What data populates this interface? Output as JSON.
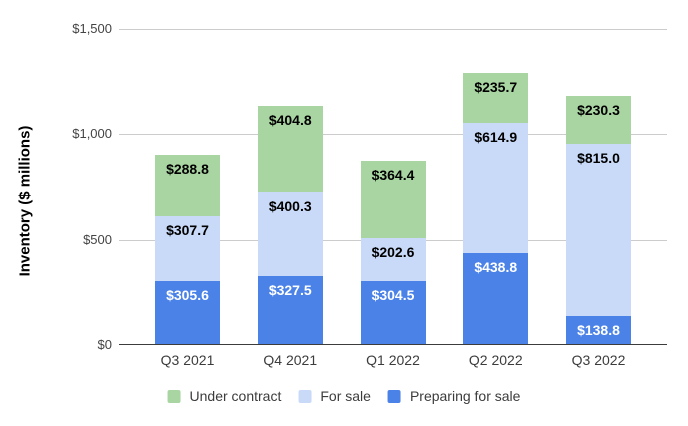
{
  "chart_data": {
    "type": "bar",
    "stacked": true,
    "title": "",
    "xlabel": "",
    "ylabel": "Inventory ($ millions)",
    "categories": [
      "Q3 2021",
      "Q4 2021",
      "Q1 2022",
      "Q2 2022",
      "Q3 2022"
    ],
    "series": [
      {
        "name": "Preparing for sale",
        "color": "#4a82e8",
        "label_color": "#ffffff",
        "values": [
          305.6,
          327.5,
          304.5,
          438.8,
          138.8
        ],
        "data_labels": [
          "$305.6",
          "$327.5",
          "$304.5",
          "$438.8",
          "$138.8"
        ]
      },
      {
        "name": "For sale",
        "color": "#c9daf8",
        "label_color": "#000000",
        "values": [
          307.7,
          400.3,
          202.6,
          614.9,
          815.0
        ],
        "data_labels": [
          "$307.7",
          "$400.3",
          "$202.6",
          "$614.9",
          "$815.0"
        ]
      },
      {
        "name": "Under contract",
        "color": "#a9d5a2",
        "label_color": "#000000",
        "values": [
          288.8,
          404.8,
          364.4,
          235.7,
          230.3
        ],
        "data_labels": [
          "$288.8",
          "$404.8",
          "$364.4",
          "$235.7",
          "$230.3"
        ]
      }
    ],
    "ylim": [
      0,
      1500
    ],
    "y_ticks": [
      "$0",
      "$500",
      "$1,000",
      "$1,500"
    ],
    "grid": true,
    "legend_position": "bottom",
    "legend": [
      {
        "label": "Under contract",
        "color": "#a9d5a2"
      },
      {
        "label": "For sale",
        "color": "#c9daf8"
      },
      {
        "label": "Preparing for sale",
        "color": "#4a82e8"
      }
    ]
  }
}
